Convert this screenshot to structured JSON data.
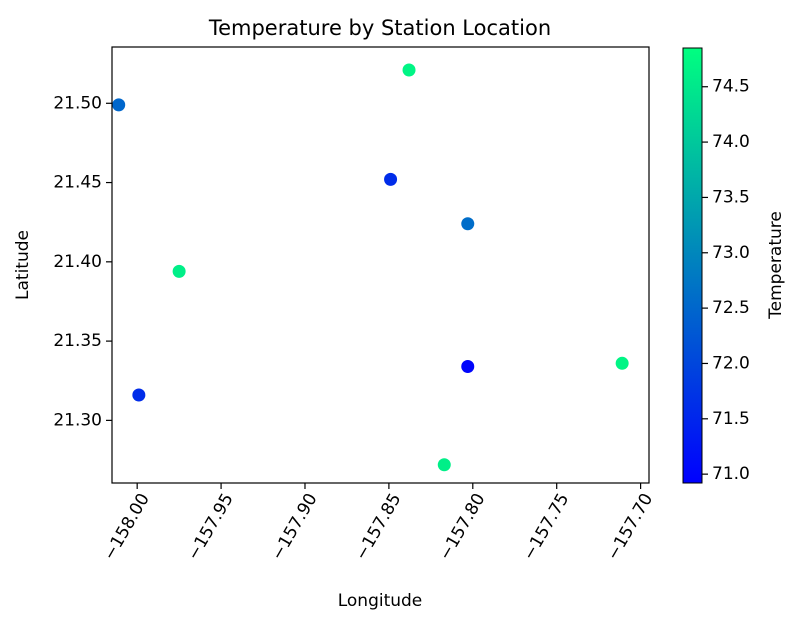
{
  "chart_data": {
    "type": "scatter",
    "title": "Temperature by Station Location",
    "xlabel": "Longitude",
    "ylabel": "Latitude",
    "xlim": [
      -158.015,
      -157.695
    ],
    "ylim": [
      21.2605,
      21.5355
    ],
    "x_ticks": [
      -158.0,
      -157.95,
      -157.9,
      -157.85,
      -157.8,
      -157.75,
      -157.7
    ],
    "x_tick_labels": [
      "−158.00",
      "−157.95",
      "−157.90",
      "−157.85",
      "−157.80",
      "−157.75",
      "−157.70"
    ],
    "y_ticks": [
      21.3,
      21.35,
      21.4,
      21.45,
      21.5
    ],
    "y_tick_labels": [
      "21.30",
      "21.35",
      "21.40",
      "21.45",
      "21.50"
    ],
    "grid": false,
    "colormap": "winter",
    "colorbar": {
      "label": "Temperature",
      "range": [
        70.92,
        74.85
      ],
      "ticks": [
        71.0,
        71.5,
        72.0,
        72.5,
        73.0,
        73.5,
        74.0,
        74.5
      ],
      "tick_labels": [
        "71.0",
        "71.5",
        "72.0",
        "72.5",
        "73.0",
        "73.5",
        "74.0",
        "74.5"
      ],
      "color_low": "#0000ff",
      "color_high": "#00ff80"
    },
    "points": [
      {
        "x": -158.011,
        "y": 21.499,
        "value": 72.5
      },
      {
        "x": -157.838,
        "y": 21.521,
        "value": 74.7
      },
      {
        "x": -157.849,
        "y": 21.452,
        "value": 71.6
      },
      {
        "x": -157.803,
        "y": 21.424,
        "value": 72.6
      },
      {
        "x": -157.975,
        "y": 21.394,
        "value": 74.6
      },
      {
        "x": -157.803,
        "y": 21.334,
        "value": 71.0
      },
      {
        "x": -157.711,
        "y": 21.336,
        "value": 74.7
      },
      {
        "x": -157.999,
        "y": 21.316,
        "value": 71.6
      },
      {
        "x": -157.817,
        "y": 21.272,
        "value": 74.6
      }
    ]
  }
}
